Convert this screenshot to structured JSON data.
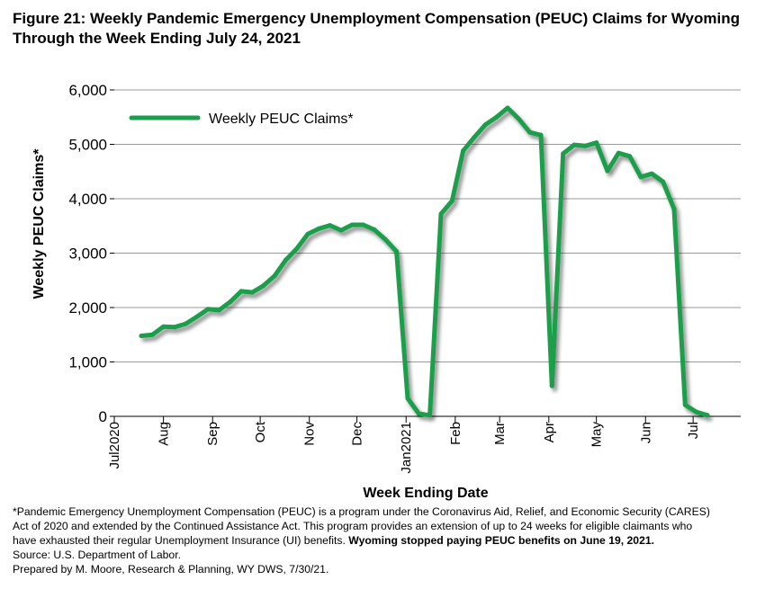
{
  "title_line1": "Figure 21: Weekly Pandemic Emergency Unemployment Compensation (PEUC) Claims for Wyoming",
  "title_line2": "Through the Week Ending July 24, 2021",
  "footnote": {
    "line1": "*Pandemic Emergency Unemployment Compensation (PEUC) is a program under the Coronavirus Aid, Relief, and Economic Security (CARES)",
    "line2": "Act of 2020 and extended by the Continued Assistance Act. This program provides an extension of up to 24 weeks for eligible claimants who",
    "line3_normal": "have exhausted their regular Unemployment Insurance (UI) benefits. ",
    "line3_bold": "Wyoming stopped paying PEUC benefits on June 19, 2021.",
    "source": "Source: U.S. Department of Labor.",
    "prepared": "Prepared by M. Moore, Research & Planning, WY DWS, 7/30/21."
  },
  "chart_data": {
    "type": "line",
    "xlabel": "Week Ending Date",
    "ylabel": "Weekly PEUC Claims*",
    "ylim": [
      0,
      6000
    ],
    "yticks": [
      0,
      1000,
      2000,
      3000,
      4000,
      5000,
      6000
    ],
    "ytick_labels": [
      "0",
      "1,000",
      "2,000",
      "3,000",
      "4,000",
      "5,000",
      "6,000"
    ],
    "xlim": [
      "2020-07-01",
      "2021-07-31"
    ],
    "xticks": [
      {
        "date": "2020-07-01",
        "label": "Jul2020"
      },
      {
        "date": "2020-08-01",
        "label": "Aug"
      },
      {
        "date": "2020-09-01",
        "label": "Sep"
      },
      {
        "date": "2020-10-01",
        "label": "Oct"
      },
      {
        "date": "2020-11-01",
        "label": "Nov"
      },
      {
        "date": "2020-12-01",
        "label": "Dec"
      },
      {
        "date": "2021-01-01",
        "label": "Jan2021"
      },
      {
        "date": "2021-02-01",
        "label": "Feb"
      },
      {
        "date": "2021-03-01",
        "label": "Mar"
      },
      {
        "date": "2021-04-01",
        "label": "Apr"
      },
      {
        "date": "2021-05-01",
        "label": "May"
      },
      {
        "date": "2021-06-01",
        "label": "Jun"
      },
      {
        "date": "2021-07-01",
        "label": "Jul"
      }
    ],
    "grid": true,
    "legend_position": "top-left",
    "series": [
      {
        "name": "Weekly PEUC Claims*",
        "color": "#1a9e4b",
        "points": [
          [
            "2020-07-18",
            1480
          ],
          [
            "2020-07-25",
            1500
          ],
          [
            "2020-08-01",
            1650
          ],
          [
            "2020-08-08",
            1640
          ],
          [
            "2020-08-15",
            1700
          ],
          [
            "2020-08-22",
            1830
          ],
          [
            "2020-08-29",
            1970
          ],
          [
            "2020-09-05",
            1950
          ],
          [
            "2020-09-12",
            2100
          ],
          [
            "2020-09-19",
            2300
          ],
          [
            "2020-09-26",
            2280
          ],
          [
            "2020-10-03",
            2400
          ],
          [
            "2020-10-10",
            2580
          ],
          [
            "2020-10-17",
            2870
          ],
          [
            "2020-10-24",
            3080
          ],
          [
            "2020-10-31",
            3350
          ],
          [
            "2020-11-07",
            3450
          ],
          [
            "2020-11-14",
            3510
          ],
          [
            "2020-11-21",
            3420
          ],
          [
            "2020-11-28",
            3520
          ],
          [
            "2020-12-05",
            3520
          ],
          [
            "2020-12-12",
            3430
          ],
          [
            "2020-12-19",
            3250
          ],
          [
            "2020-12-26",
            3030
          ],
          [
            "2021-01-02",
            330
          ],
          [
            "2021-01-09",
            50
          ],
          [
            "2021-01-16",
            20
          ],
          [
            "2021-01-23",
            3720
          ],
          [
            "2021-01-30",
            3960
          ],
          [
            "2021-02-06",
            4880
          ],
          [
            "2021-02-13",
            5130
          ],
          [
            "2021-02-20",
            5360
          ],
          [
            "2021-02-27",
            5500
          ],
          [
            "2021-03-06",
            5670
          ],
          [
            "2021-03-13",
            5470
          ],
          [
            "2021-03-20",
            5220
          ],
          [
            "2021-03-27",
            5170
          ],
          [
            "2021-04-03",
            560
          ],
          [
            "2021-04-10",
            4830
          ],
          [
            "2021-04-17",
            4990
          ],
          [
            "2021-04-24",
            4970
          ],
          [
            "2021-05-01",
            5030
          ],
          [
            "2021-05-08",
            4510
          ],
          [
            "2021-05-15",
            4840
          ],
          [
            "2021-05-22",
            4780
          ],
          [
            "2021-05-29",
            4400
          ],
          [
            "2021-06-05",
            4460
          ],
          [
            "2021-06-12",
            4310
          ],
          [
            "2021-06-19",
            3810
          ],
          [
            "2021-06-26",
            210
          ],
          [
            "2021-07-03",
            80
          ],
          [
            "2021-07-10",
            20
          ]
        ]
      }
    ]
  }
}
